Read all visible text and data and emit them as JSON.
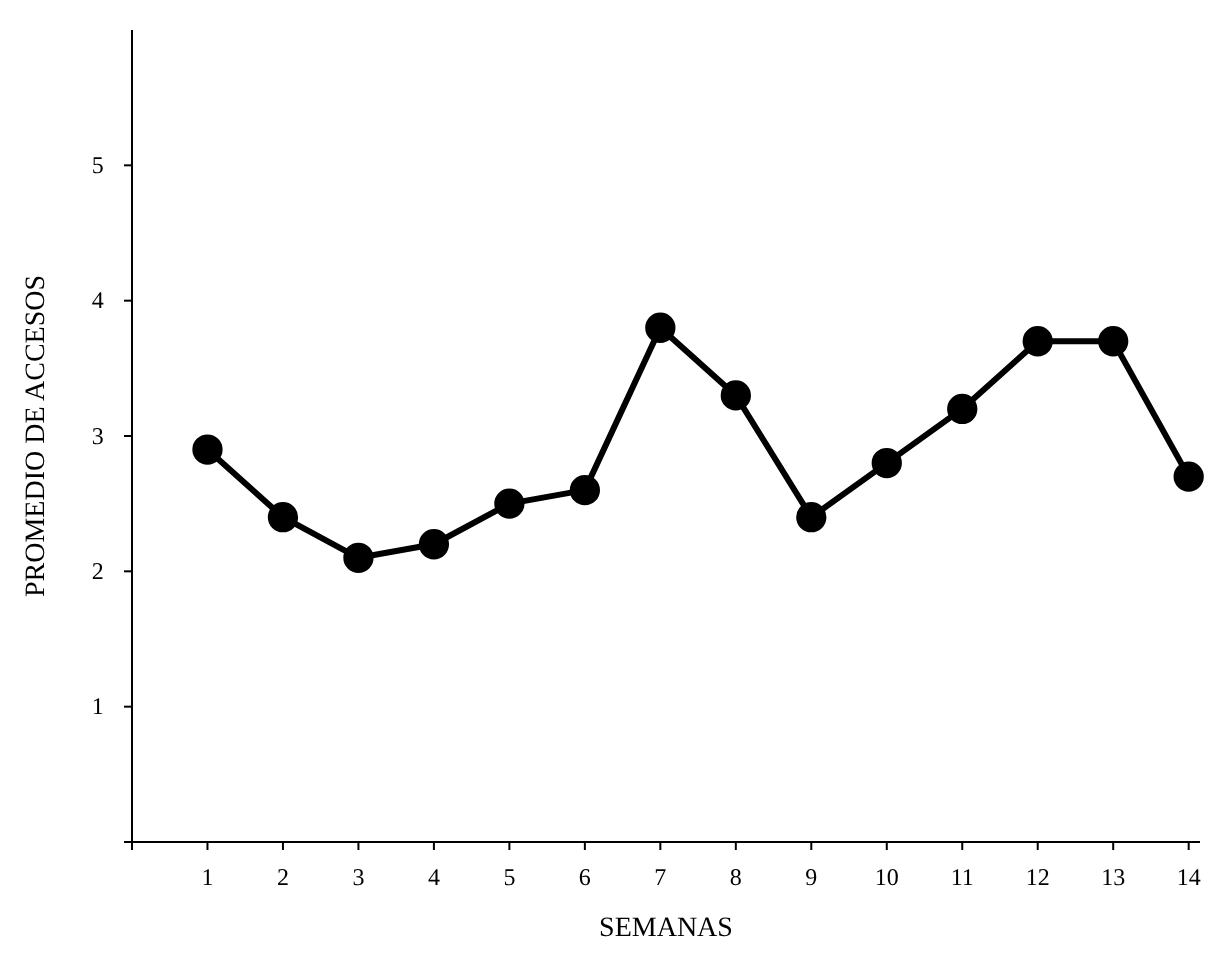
{
  "chart_data": {
    "type": "line",
    "xlabel": "SEMANAS",
    "ylabel": "PROMEDIO DE ACCESOS",
    "x": [
      1,
      2,
      3,
      4,
      5,
      6,
      7,
      8,
      9,
      10,
      11,
      12,
      13,
      14
    ],
    "series": [
      {
        "color": "#000000",
        "values": [
          2.9,
          2.4,
          2.1,
          2.2,
          2.5,
          2.6,
          3.8,
          3.3,
          2.4,
          2.8,
          3.2,
          3.7,
          3.7,
          2.7
        ]
      }
    ],
    "xlim": [
      0,
      14.15
    ],
    "xticks": [
      {
        "value": 0,
        "label": null
      },
      1,
      2,
      3,
      4,
      5,
      6,
      7,
      8,
      9,
      10,
      11,
      12,
      13,
      14
    ],
    "ylim": [
      0,
      6
    ],
    "yticks": [
      {
        "value": 0,
        "label": null
      },
      1,
      2,
      3,
      4,
      5
    ],
    "marker": "circle",
    "line_style": "solid"
  }
}
